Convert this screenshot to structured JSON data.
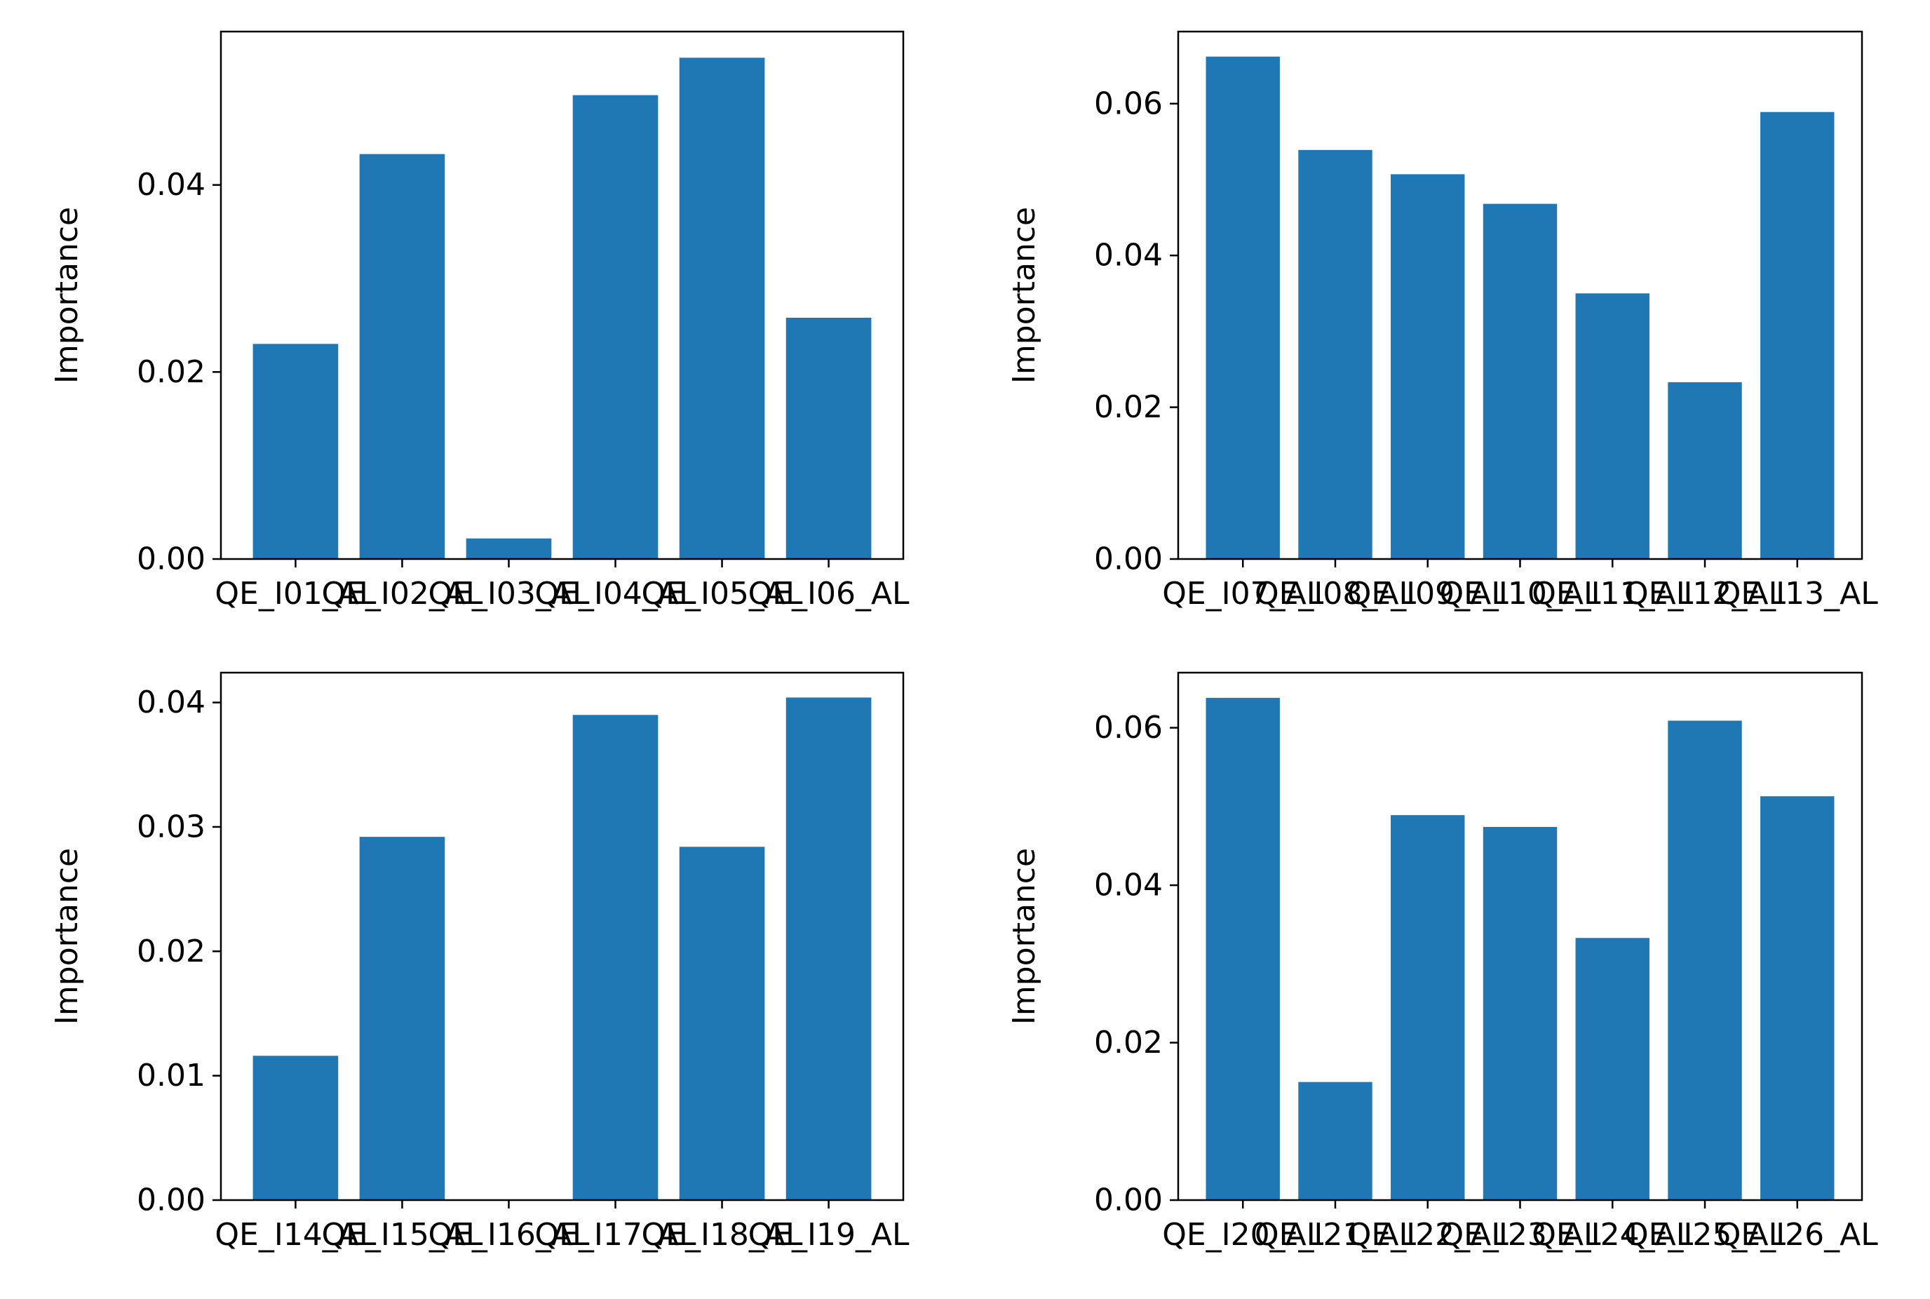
{
  "figure": {
    "background": "#ffffff"
  },
  "chart_data": [
    {
      "type": "bar",
      "title": "",
      "xlabel": "",
      "ylabel": "Importance",
      "categories": [
        "QE_I01_AL",
        "QE_I02_AL",
        "QE_I03_AL",
        "QE_I04_AL",
        "QE_I05_AL",
        "QE_I06_AL"
      ],
      "values": [
        0.023,
        0.0433,
        0.0022,
        0.0496,
        0.0536,
        0.0258
      ],
      "ylim": [
        0,
        0.0564
      ],
      "yticks": [
        0.0,
        0.02,
        0.04
      ],
      "ytick_labels": [
        "0.00",
        "0.02",
        "0.04"
      ],
      "bar_color": "#1f77b4",
      "grid": false
    },
    {
      "type": "bar",
      "title": "",
      "xlabel": "",
      "ylabel": "Importance",
      "categories": [
        "QE_I07_AL",
        "QE_I08_AL",
        "QE_I09_AL",
        "QE_I10_AL",
        "QE_I11_AL",
        "QE_I12_AL",
        "QE_I13_AL"
      ],
      "values": [
        0.0662,
        0.0539,
        0.0507,
        0.0468,
        0.035,
        0.0233,
        0.0589
      ],
      "ylim": [
        0,
        0.0695
      ],
      "yticks": [
        0.0,
        0.02,
        0.04,
        0.06
      ],
      "ytick_labels": [
        "0.00",
        "0.02",
        "0.04",
        "0.06"
      ],
      "bar_color": "#1f77b4",
      "grid": false
    },
    {
      "type": "bar",
      "title": "",
      "xlabel": "",
      "ylabel": "Importance",
      "categories": [
        "QE_I14_AL",
        "QE_I15_AL",
        "QE_I16_AL",
        "QE_I17_AL",
        "QE_I18_AL",
        "QE_I19_AL"
      ],
      "values": [
        0.0116,
        0.0292,
        0.0,
        0.039,
        0.0284,
        0.0404
      ],
      "ylim": [
        0,
        0.0424
      ],
      "yticks": [
        0.0,
        0.01,
        0.02,
        0.03,
        0.04
      ],
      "ytick_labels": [
        "0.00",
        "0.01",
        "0.02",
        "0.03",
        "0.04"
      ],
      "bar_color": "#1f77b4",
      "grid": false
    },
    {
      "type": "bar",
      "title": "",
      "xlabel": "",
      "ylabel": "Importance",
      "categories": [
        "QE_I20_AL",
        "QE_I21_AL",
        "QE_I22_AL",
        "QE_I23_AL",
        "QE_I24_AL",
        "QE_I25_AL",
        "QE_I26_AL"
      ],
      "values": [
        0.0638,
        0.015,
        0.0489,
        0.0474,
        0.0333,
        0.0609,
        0.0513
      ],
      "ylim": [
        0,
        0.067
      ],
      "yticks": [
        0.0,
        0.02,
        0.04,
        0.06
      ],
      "ytick_labels": [
        "0.00",
        "0.02",
        "0.04",
        "0.06"
      ],
      "bar_color": "#1f77b4",
      "grid": false
    }
  ]
}
